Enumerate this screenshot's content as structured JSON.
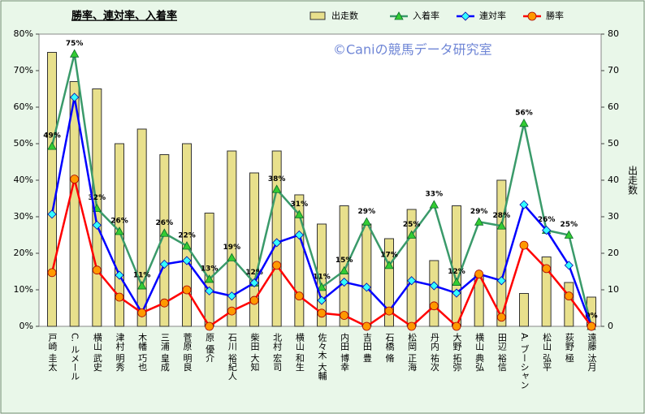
{
  "chart_data": {
    "type": "bar-line",
    "title": "勝率、連対率、入着率",
    "annotation": "©Caniの競馬データ研究室",
    "y2label": "出走数",
    "categories": [
      "戸崎 圭太",
      "C. ルメール",
      "横山 武史",
      "津村 明秀",
      "木幡 巧也",
      "三浦 皇成",
      "菅原 明良",
      "原 優介",
      "石川 裕紀人",
      "柴田 大知",
      "北村 宏司",
      "横山 和生",
      "佐々木 大輔",
      "内田 博幸",
      "吉田 豊",
      "石橋 脩",
      "松岡 正海",
      "丹内 祐次",
      "大野 拓弥",
      "横山 典弘",
      "田辺 裕信",
      "A. ブーシャン",
      "松山 弘平",
      "荻野 極",
      "遠藤 汰月"
    ],
    "series": [
      {
        "name": "出走数",
        "type": "bar",
        "axis": "y2",
        "color": "#e8e08c",
        "values": [
          75,
          67,
          65,
          50,
          54,
          47,
          50,
          31,
          48,
          42,
          48,
          36,
          28,
          33,
          28,
          24,
          32,
          18,
          33,
          14,
          40,
          9,
          19,
          12,
          8
        ]
      },
      {
        "name": "入着率",
        "type": "line",
        "color": "#3a9a6a",
        "marker": "triangle",
        "marker_color": "#33cc33",
        "values": [
          49.3,
          74.6,
          32.3,
          26,
          11.1,
          25.5,
          22,
          12.9,
          18.8,
          11.9,
          37.5,
          30.6,
          10.7,
          15.2,
          28.6,
          16.7,
          25,
          33.3,
          12.1,
          28.6,
          27.5,
          55.6,
          26.3,
          25,
          0
        ],
        "value_labels": [
          "49%",
          "75%",
          "32%",
          "26%",
          "11%",
          "26%",
          "22%",
          "13%",
          "19%",
          "12%",
          "38%",
          "31%",
          "11%",
          "15%",
          "29%",
          "17%",
          "25%",
          "33%",
          "12%",
          "29%",
          "28%",
          "56%",
          "26%",
          "25%",
          "0%"
        ]
      },
      {
        "name": "連対率",
        "type": "line",
        "color": "#0000ff",
        "marker": "diamond",
        "marker_color": "#33ffff",
        "values": [
          30.7,
          62.7,
          27.7,
          14,
          3.7,
          17,
          18,
          9.7,
          8.3,
          11.9,
          22.9,
          25,
          7.1,
          12.1,
          10.7,
          4.2,
          12.5,
          11.1,
          9.1,
          14.3,
          12.5,
          33.3,
          26.3,
          16.7,
          0
        ]
      },
      {
        "name": "勝率",
        "type": "line",
        "color": "#ff0000",
        "marker": "circle",
        "marker_color": "#ff9900",
        "values": [
          14.7,
          40.3,
          15.4,
          8,
          3.7,
          6.4,
          10,
          0,
          4.2,
          7.1,
          16.7,
          8.3,
          3.6,
          3,
          0,
          4.2,
          0,
          5.6,
          0,
          14.3,
          2.5,
          22.2,
          15.8,
          8.3,
          0
        ]
      }
    ],
    "ylim": [
      0,
      80
    ],
    "yticks": [
      {
        "value": 0,
        "label": "0%"
      },
      {
        "value": 10,
        "label": "10%"
      },
      {
        "value": 20,
        "label": "20%"
      },
      {
        "value": 30,
        "label": "30%"
      },
      {
        "value": 40,
        "label": "40%"
      },
      {
        "value": 50,
        "label": "50%"
      },
      {
        "value": 60,
        "label": "60%"
      },
      {
        "value": 70,
        "label": "70%"
      },
      {
        "value": 80,
        "label": "80%"
      }
    ],
    "y2lim": [
      0,
      80
    ],
    "y2ticks": [
      0,
      10,
      20,
      30,
      40,
      50,
      60,
      70,
      80
    ],
    "grid": false
  }
}
